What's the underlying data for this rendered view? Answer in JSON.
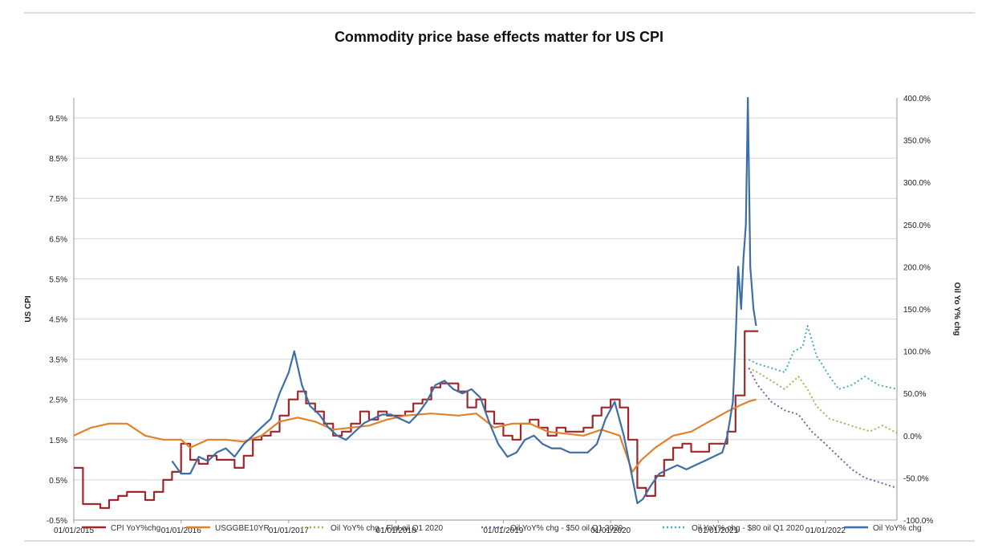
{
  "chart_data": {
    "type": "line",
    "title": "Commodity price base effects matter for US CPI",
    "ylabel": "US CPI",
    "y2label": "Oil Yo Y% chg",
    "ylim": [
      -0.5,
      10.0
    ],
    "y2lim": [
      -100,
      400
    ],
    "xlim": [
      "2015-01-01",
      "2022-09-01"
    ],
    "y_ticks": [
      "-0.5%",
      "0.5%",
      "1.5%",
      "2.5%",
      "3.5%",
      "4.5%",
      "5.5%",
      "6.5%",
      "7.5%",
      "8.5%",
      "9.5%"
    ],
    "y2_ticks": [
      "-100.0%",
      "-50.0%",
      "0.0%",
      "50.0%",
      "100.0%",
      "150.0%",
      "200.0%",
      "250.0%",
      "300.0%",
      "350.0%",
      "400.0%"
    ],
    "x_ticks": [
      "01/01/2015",
      "01/01/2016",
      "01/01/2017",
      "01/01/2018",
      "01/01/2019",
      "01/01/2020",
      "01/01/2021",
      "01/01/2022"
    ],
    "grid": true,
    "legend_position": "bottom",
    "series": [
      {
        "name": "CPI YoY%chg",
        "axis": "left",
        "style": "step",
        "color": "#a0272c",
        "points": [
          [
            "2015-01-01",
            0.8
          ],
          [
            "2015-02-01",
            -0.1
          ],
          [
            "2015-03-01",
            -0.1
          ],
          [
            "2015-04-01",
            -0.2
          ],
          [
            "2015-05-01",
            0.0
          ],
          [
            "2015-06-01",
            0.1
          ],
          [
            "2015-07-01",
            0.2
          ],
          [
            "2015-08-01",
            0.2
          ],
          [
            "2015-09-01",
            0.0
          ],
          [
            "2015-10-01",
            0.2
          ],
          [
            "2015-11-01",
            0.5
          ],
          [
            "2015-12-01",
            0.7
          ],
          [
            "2016-01-01",
            1.4
          ],
          [
            "2016-02-01",
            1.0
          ],
          [
            "2016-03-01",
            0.9
          ],
          [
            "2016-04-01",
            1.1
          ],
          [
            "2016-05-01",
            1.0
          ],
          [
            "2016-06-01",
            1.0
          ],
          [
            "2016-07-01",
            0.8
          ],
          [
            "2016-08-01",
            1.1
          ],
          [
            "2016-09-01",
            1.5
          ],
          [
            "2016-10-01",
            1.6
          ],
          [
            "2016-11-01",
            1.7
          ],
          [
            "2016-12-01",
            2.1
          ],
          [
            "2017-01-01",
            2.5
          ],
          [
            "2017-02-01",
            2.7
          ],
          [
            "2017-03-01",
            2.4
          ],
          [
            "2017-04-01",
            2.2
          ],
          [
            "2017-05-01",
            1.9
          ],
          [
            "2017-06-01",
            1.6
          ],
          [
            "2017-07-01",
            1.7
          ],
          [
            "2017-08-01",
            1.9
          ],
          [
            "2017-09-01",
            2.2
          ],
          [
            "2017-10-01",
            2.0
          ],
          [
            "2017-11-01",
            2.2
          ],
          [
            "2017-12-01",
            2.1
          ],
          [
            "2018-01-01",
            2.1
          ],
          [
            "2018-02-01",
            2.2
          ],
          [
            "2018-03-01",
            2.4
          ],
          [
            "2018-04-01",
            2.5
          ],
          [
            "2018-05-01",
            2.8
          ],
          [
            "2018-06-01",
            2.9
          ],
          [
            "2018-07-01",
            2.9
          ],
          [
            "2018-08-01",
            2.7
          ],
          [
            "2018-09-01",
            2.3
          ],
          [
            "2018-10-01",
            2.5
          ],
          [
            "2018-11-01",
            2.2
          ],
          [
            "2018-12-01",
            1.9
          ],
          [
            "2019-01-01",
            1.6
          ],
          [
            "2019-02-01",
            1.5
          ],
          [
            "2019-03-01",
            1.9
          ],
          [
            "2019-04-01",
            2.0
          ],
          [
            "2019-05-01",
            1.8
          ],
          [
            "2019-06-01",
            1.6
          ],
          [
            "2019-07-01",
            1.8
          ],
          [
            "2019-08-01",
            1.7
          ],
          [
            "2019-09-01",
            1.7
          ],
          [
            "2019-10-01",
            1.8
          ],
          [
            "2019-11-01",
            2.1
          ],
          [
            "2019-12-01",
            2.3
          ],
          [
            "2020-01-01",
            2.5
          ],
          [
            "2020-02-01",
            2.3
          ],
          [
            "2020-03-01",
            1.5
          ],
          [
            "2020-04-01",
            0.3
          ],
          [
            "2020-05-01",
            0.1
          ],
          [
            "2020-06-01",
            0.6
          ],
          [
            "2020-07-01",
            1.0
          ],
          [
            "2020-08-01",
            1.3
          ],
          [
            "2020-09-01",
            1.4
          ],
          [
            "2020-10-01",
            1.2
          ],
          [
            "2020-11-01",
            1.2
          ],
          [
            "2020-12-01",
            1.4
          ],
          [
            "2021-01-01",
            1.4
          ],
          [
            "2021-02-01",
            1.7
          ],
          [
            "2021-03-01",
            2.6
          ],
          [
            "2021-04-01",
            4.2
          ],
          [
            "2021-05-01",
            4.2
          ]
        ]
      },
      {
        "name": "USGGBE10YR",
        "axis": "left",
        "style": "line",
        "color": "#e0822c",
        "points": [
          [
            "2015-01-01",
            1.6
          ],
          [
            "2015-03-01",
            1.8
          ],
          [
            "2015-05-01",
            1.9
          ],
          [
            "2015-07-01",
            1.9
          ],
          [
            "2015-09-01",
            1.6
          ],
          [
            "2015-11-01",
            1.5
          ],
          [
            "2016-01-01",
            1.5
          ],
          [
            "2016-02-01",
            1.3
          ],
          [
            "2016-04-01",
            1.5
          ],
          [
            "2016-06-01",
            1.5
          ],
          [
            "2016-08-01",
            1.45
          ],
          [
            "2016-10-01",
            1.6
          ],
          [
            "2016-12-01",
            1.95
          ],
          [
            "2017-02-01",
            2.05
          ],
          [
            "2017-04-01",
            1.95
          ],
          [
            "2017-06-01",
            1.75
          ],
          [
            "2017-08-01",
            1.8
          ],
          [
            "2017-10-01",
            1.85
          ],
          [
            "2017-12-01",
            2.0
          ],
          [
            "2018-02-01",
            2.1
          ],
          [
            "2018-05-01",
            2.15
          ],
          [
            "2018-08-01",
            2.1
          ],
          [
            "2018-10-01",
            2.15
          ],
          [
            "2018-12-01",
            1.8
          ],
          [
            "2019-02-01",
            1.9
          ],
          [
            "2019-04-01",
            1.9
          ],
          [
            "2019-06-01",
            1.7
          ],
          [
            "2019-08-01",
            1.65
          ],
          [
            "2019-10-01",
            1.6
          ],
          [
            "2019-12-01",
            1.75
          ],
          [
            "2020-02-01",
            1.6
          ],
          [
            "2020-03-15",
            0.7
          ],
          [
            "2020-04-15",
            1.0
          ],
          [
            "2020-06-01",
            1.3
          ],
          [
            "2020-08-01",
            1.6
          ],
          [
            "2020-10-01",
            1.7
          ],
          [
            "2020-12-01",
            1.95
          ],
          [
            "2021-02-01",
            2.2
          ],
          [
            "2021-03-15",
            2.35
          ],
          [
            "2021-04-15",
            2.45
          ],
          [
            "2021-05-10",
            2.5
          ]
        ]
      },
      {
        "name": "Oil YoY% chg - Flat oil Q1 2020",
        "axis": "right",
        "style": "dotted",
        "color": "#9bbb59",
        "points": [
          [
            "2021-04-15",
            80
          ],
          [
            "2021-05-15",
            75
          ],
          [
            "2021-07-01",
            65
          ],
          [
            "2021-08-15",
            55
          ],
          [
            "2021-10-01",
            70
          ],
          [
            "2021-11-01",
            55
          ],
          [
            "2021-12-01",
            35
          ],
          [
            "2022-01-15",
            20
          ],
          [
            "2022-03-01",
            15
          ],
          [
            "2022-04-15",
            10
          ],
          [
            "2022-06-01",
            5
          ],
          [
            "2022-07-15",
            12
          ],
          [
            "2022-09-01",
            3
          ]
        ]
      },
      {
        "name": "Oil YoY% chg - $50 oil Q1 2020",
        "axis": "right",
        "style": "dotted",
        "color": "#7d5fa5",
        "points": [
          [
            "2021-04-15",
            80
          ],
          [
            "2021-05-15",
            60
          ],
          [
            "2021-07-01",
            40
          ],
          [
            "2021-08-15",
            30
          ],
          [
            "2021-10-01",
            25
          ],
          [
            "2021-11-15",
            5
          ],
          [
            "2022-01-01",
            -10
          ],
          [
            "2022-02-15",
            -25
          ],
          [
            "2022-04-01",
            -40
          ],
          [
            "2022-05-15",
            -50
          ],
          [
            "2022-07-01",
            -55
          ],
          [
            "2022-09-01",
            -62
          ]
        ]
      },
      {
        "name": "Oil YoY% chg - $80 oil Q1 2020",
        "axis": "right",
        "style": "dotted",
        "color": "#4bacc6",
        "points": [
          [
            "2021-04-15",
            90
          ],
          [
            "2021-05-15",
            85
          ],
          [
            "2021-07-01",
            80
          ],
          [
            "2021-08-15",
            75
          ],
          [
            "2021-09-15",
            100
          ],
          [
            "2021-10-15",
            105
          ],
          [
            "2021-11-01",
            130
          ],
          [
            "2021-12-01",
            95
          ],
          [
            "2022-01-15",
            70
          ],
          [
            "2022-02-15",
            55
          ],
          [
            "2022-04-01",
            60
          ],
          [
            "2022-05-15",
            70
          ],
          [
            "2022-07-01",
            60
          ],
          [
            "2022-09-01",
            55
          ]
        ]
      },
      {
        "name": "Oil YoY% chg",
        "axis": "right",
        "style": "line",
        "color": "#3e6ea6",
        "points": [
          [
            "2015-12-01",
            -30
          ],
          [
            "2016-01-01",
            -45
          ],
          [
            "2016-02-01",
            -45
          ],
          [
            "2016-03-01",
            -25
          ],
          [
            "2016-04-01",
            -30
          ],
          [
            "2016-05-01",
            -20
          ],
          [
            "2016-06-01",
            -15
          ],
          [
            "2016-07-01",
            -25
          ],
          [
            "2016-08-01",
            -10
          ],
          [
            "2016-09-01",
            0
          ],
          [
            "2016-10-01",
            10
          ],
          [
            "2016-11-01",
            20
          ],
          [
            "2016-12-01",
            50
          ],
          [
            "2017-01-01",
            75
          ],
          [
            "2017-01-20",
            100
          ],
          [
            "2017-02-15",
            60
          ],
          [
            "2017-03-15",
            35
          ],
          [
            "2017-04-15",
            25
          ],
          [
            "2017-05-15",
            10
          ],
          [
            "2017-06-15",
            0
          ],
          [
            "2017-07-15",
            -5
          ],
          [
            "2017-08-15",
            5
          ],
          [
            "2017-09-15",
            15
          ],
          [
            "2017-10-15",
            20
          ],
          [
            "2017-11-15",
            25
          ],
          [
            "2017-12-15",
            25
          ],
          [
            "2018-01-15",
            20
          ],
          [
            "2018-02-15",
            15
          ],
          [
            "2018-03-15",
            25
          ],
          [
            "2018-04-15",
            40
          ],
          [
            "2018-05-15",
            60
          ],
          [
            "2018-06-15",
            65
          ],
          [
            "2018-07-15",
            55
          ],
          [
            "2018-08-15",
            50
          ],
          [
            "2018-09-15",
            55
          ],
          [
            "2018-10-15",
            45
          ],
          [
            "2018-11-15",
            15
          ],
          [
            "2018-12-15",
            -10
          ],
          [
            "2019-01-15",
            -25
          ],
          [
            "2019-02-15",
            -20
          ],
          [
            "2019-03-15",
            -5
          ],
          [
            "2019-04-15",
            0
          ],
          [
            "2019-05-15",
            -10
          ],
          [
            "2019-06-15",
            -15
          ],
          [
            "2019-07-15",
            -15
          ],
          [
            "2019-08-15",
            -20
          ],
          [
            "2019-09-15",
            -20
          ],
          [
            "2019-10-15",
            -20
          ],
          [
            "2019-11-15",
            -10
          ],
          [
            "2019-12-15",
            20
          ],
          [
            "2020-01-15",
            40
          ],
          [
            "2020-02-15",
            0
          ],
          [
            "2020-03-15",
            -50
          ],
          [
            "2020-04-01",
            -80
          ],
          [
            "2020-04-20",
            -75
          ],
          [
            "2020-05-15",
            -60
          ],
          [
            "2020-06-15",
            -45
          ],
          [
            "2020-07-15",
            -40
          ],
          [
            "2020-08-15",
            -35
          ],
          [
            "2020-09-15",
            -40
          ],
          [
            "2020-10-15",
            -35
          ],
          [
            "2020-11-15",
            -30
          ],
          [
            "2020-12-15",
            -25
          ],
          [
            "2021-01-15",
            -20
          ],
          [
            "2021-02-01",
            0
          ],
          [
            "2021-02-20",
            40
          ],
          [
            "2021-03-01",
            110
          ],
          [
            "2021-03-10",
            200
          ],
          [
            "2021-03-20",
            150
          ],
          [
            "2021-03-28",
            210
          ],
          [
            "2021-04-05",
            250
          ],
          [
            "2021-04-12",
            400
          ],
          [
            "2021-04-20",
            200
          ],
          [
            "2021-05-01",
            150
          ],
          [
            "2021-05-10",
            130
          ]
        ]
      }
    ]
  }
}
